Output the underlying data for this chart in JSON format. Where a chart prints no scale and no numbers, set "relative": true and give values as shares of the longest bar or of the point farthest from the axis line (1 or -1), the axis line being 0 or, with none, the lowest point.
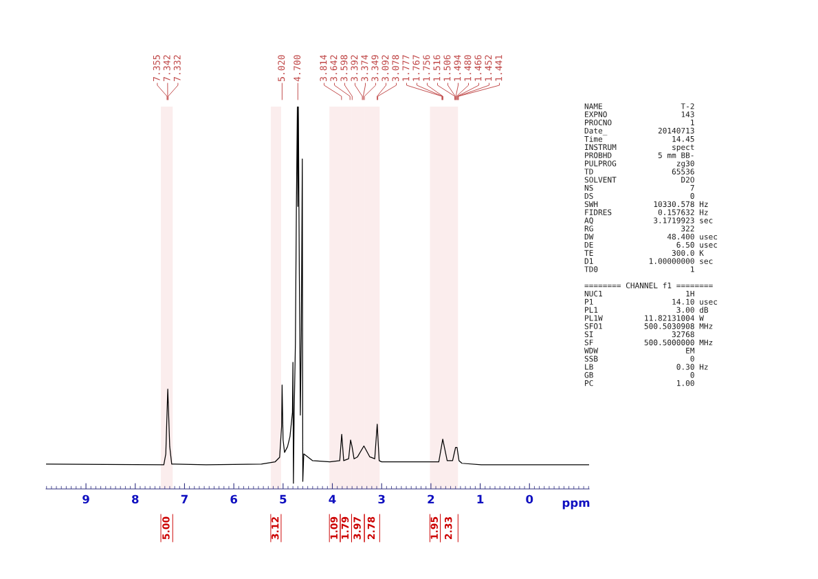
{
  "chart_data": {
    "type": "line",
    "relative": true,
    "xlabel": "ppm",
    "xlim": [
      9.81,
      -1.21
    ],
    "xticks": [
      9,
      8,
      7,
      6,
      5,
      4,
      3,
      2,
      1,
      0
    ],
    "grid": false,
    "series": [
      {
        "color": "#000000",
        "x": [
          9.81,
          7.42,
          7.38,
          7.34,
          7.3,
          7.26,
          6.56,
          5.44,
          5.16,
          5.07,
          5.03,
          5.02,
          5.0,
          4.97,
          4.91,
          4.86,
          4.81,
          4.8,
          4.79,
          4.775,
          4.75,
          4.73,
          4.71,
          4.7,
          4.69,
          4.67,
          4.66,
          4.65,
          4.63,
          4.61,
          4.6,
          4.58,
          4.53,
          4.4,
          4.05,
          3.85,
          3.81,
          3.77,
          3.67,
          3.63,
          3.6,
          3.56,
          3.49,
          3.36,
          3.24,
          3.14,
          3.09,
          3.05,
          3.0,
          2.37,
          1.84,
          1.76,
          1.67,
          1.56,
          1.5,
          1.47,
          1.43,
          1.37,
          0.98,
          0,
          -1.21
        ],
        "values": [
          0.051,
          0.049,
          0.078,
          0.25,
          0.097,
          0.051,
          0.049,
          0.051,
          0.057,
          0.069,
          0.151,
          0.261,
          0.115,
          0.082,
          0.097,
          0.124,
          0.188,
          0.321,
          0,
          0.188,
          0.37,
          0.735,
          1,
          0.735,
          1,
          0.553,
          0.4,
          0.181,
          0.4,
          0.861,
          0.005,
          0.078,
          0.073,
          0.06,
          0.057,
          0.06,
          0.13,
          0.06,
          0.065,
          0.115,
          0.097,
          0.065,
          0.07,
          0.099,
          0.07,
          0.065,
          0.157,
          0.06,
          0.057,
          0.057,
          0.057,
          0.117,
          0.06,
          0.06,
          0.095,
          0.095,
          0.06,
          0.053,
          0.049,
          0.049,
          0.049
        ]
      }
    ],
    "bands": [
      {
        "axis": "x",
        "from": 7.48,
        "to": 7.24,
        "label": "5.00",
        "color": "#cc0000"
      },
      {
        "axis": "x",
        "from": 5.25,
        "to": 5.04,
        "label": "3.12",
        "color": "#cc0000"
      },
      {
        "axis": "x",
        "from": 4.06,
        "to": 3.84,
        "label": "1.09",
        "color": "#cc0000"
      },
      {
        "axis": "x",
        "from": 3.84,
        "to": 3.61,
        "label": "1.79",
        "color": "#cc0000"
      },
      {
        "axis": "x",
        "from": 3.61,
        "to": 3.35,
        "label": "3.97",
        "color": "#cc0000"
      },
      {
        "axis": "x",
        "from": 3.35,
        "to": 3.04,
        "label": "2.78",
        "color": "#cc0000"
      },
      {
        "axis": "x",
        "from": 2.02,
        "to": 1.81,
        "label": "1.95",
        "color": "#cc0000"
      },
      {
        "axis": "x",
        "from": 1.81,
        "to": 1.45,
        "label": "2.33",
        "color": "#cc0000"
      }
    ],
    "annotations": [
      "7.355",
      "7.342",
      "7.332",
      "5.020",
      "4.700",
      "3.814",
      "3.642",
      "3.598",
      "3.392",
      "3.374",
      "3.349",
      "3.092",
      "3.078",
      "1.777",
      "1.767",
      "1.756",
      "1.516",
      "1.506",
      "1.494",
      "1.480",
      "1.466",
      "1.452",
      "1.441",
      "NAME                 T-2\nEXPNO                143\nPROCNO                 1\nDate_           20140713\nTime               14.45\nINSTRUM            spect\nPROBHD          5 mm BB-\nPULPROG             zg30\nTD                 65536\nSOLVENT              D2O\nNS                     7\nDS                     0\nSWH            10330.578 Hz\nFIDRES          0.157632 Hz\nAQ             3.1719923 sec\nRG                   322\nDW                48.400 usec\nDE                  6.50 usec\nTE                 300.0 K\nD1            1.00000000 sec\nTD0                    1\n\n======== CHANNEL f1 ========\nNUC1                  1H\nP1                 14.10 usec\nPL1                 3.00 dB\nPL1W         11.82131004 W\nSFO1         500.5030908 MHz\nSI                 32768\nSF           500.5000000 MHz\nWDW                   EM\nSSB                    0\nLB                  0.30 Hz\nGB                     0\nPC                  1.00"
    ]
  }
}
